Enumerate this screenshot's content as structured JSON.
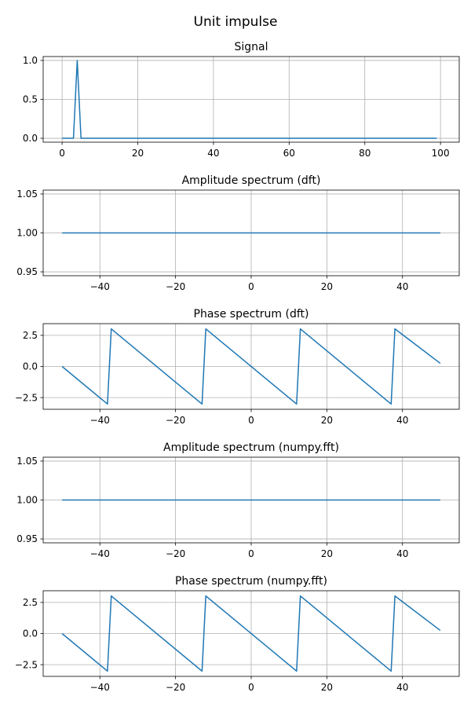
{
  "suptitle": "Unit impulse",
  "colors": {
    "series": "#1f77b4",
    "grid": "#b0b0b0"
  },
  "chart_data": [
    {
      "type": "line",
      "title": "Signal",
      "xlabel": "",
      "ylabel": "",
      "grid": true,
      "xlim": [
        -5,
        104.95
      ],
      "ylim": [
        -0.05,
        1.05
      ],
      "xticks": [
        0,
        20,
        40,
        60,
        80,
        100
      ],
      "xtick_labels": [
        "0",
        "20",
        "40",
        "60",
        "80",
        "100"
      ],
      "yticks": [
        0,
        0.5,
        1
      ],
      "ytick_labels": [
        "0.0",
        "0.5",
        "1.0"
      ],
      "series": [
        {
          "x": [
            0,
            1,
            2,
            3,
            4,
            5,
            99
          ],
          "y": [
            0,
            0,
            0,
            0,
            1,
            0,
            0
          ]
        }
      ]
    },
    {
      "type": "line",
      "title": "Amplitude spectrum (dft)",
      "xlabel": "",
      "ylabel": "",
      "grid": true,
      "xlim": [
        -55,
        55
      ],
      "ylim": [
        0.945,
        1.055
      ],
      "xticks": [
        -40,
        -20,
        0,
        20,
        40
      ],
      "xtick_labels": [
        "−40",
        "−20",
        "0",
        "20",
        "40"
      ],
      "yticks": [
        0.95,
        1.0,
        1.05
      ],
      "ytick_labels": [
        "0.95",
        "1.00",
        "1.05"
      ],
      "series": [
        {
          "x": [
            -50,
            50
          ],
          "y": [
            1,
            1
          ]
        }
      ]
    },
    {
      "type": "line",
      "title": "Phase spectrum (dft)",
      "xlabel": "",
      "ylabel": "",
      "grid": true,
      "xlim": [
        -55,
        55
      ],
      "ylim": [
        -3.44,
        3.44
      ],
      "xticks": [
        -40,
        -20,
        0,
        20,
        40
      ],
      "xtick_labels": [
        "−40",
        "−20",
        "0",
        "20",
        "40"
      ],
      "yticks": [
        -2.5,
        0,
        2.5
      ],
      "ytick_labels": [
        "−2.5",
        "0.0",
        "2.5"
      ],
      "series": [
        {
          "x": [
            -50,
            -38,
            -37,
            -13,
            -12,
            12,
            13,
            37,
            38,
            50
          ],
          "y": [
            0,
            -3.02,
            3.02,
            -3.02,
            3.02,
            -3.02,
            3.02,
            -3.02,
            3.02,
            0.25
          ]
        }
      ]
    },
    {
      "type": "line",
      "title": "Amplitude spectrum (numpy.fft)",
      "xlabel": "",
      "ylabel": "",
      "grid": true,
      "xlim": [
        -55,
        55
      ],
      "ylim": [
        0.945,
        1.055
      ],
      "xticks": [
        -40,
        -20,
        0,
        20,
        40
      ],
      "xtick_labels": [
        "−40",
        "−20",
        "0",
        "20",
        "40"
      ],
      "yticks": [
        0.95,
        1.0,
        1.05
      ],
      "ytick_labels": [
        "0.95",
        "1.00",
        "1.05"
      ],
      "series": [
        {
          "x": [
            -50,
            50
          ],
          "y": [
            1,
            1
          ]
        }
      ]
    },
    {
      "type": "line",
      "title": "Phase spectrum (numpy.fft)",
      "xlabel": "",
      "ylabel": "",
      "grid": true,
      "xlim": [
        -55,
        55
      ],
      "ylim": [
        -3.44,
        3.44
      ],
      "xticks": [
        -40,
        -20,
        0,
        20,
        40
      ],
      "xtick_labels": [
        "−40",
        "−20",
        "0",
        "20",
        "40"
      ],
      "yticks": [
        -2.5,
        0,
        2.5
      ],
      "ytick_labels": [
        "−2.5",
        "0.0",
        "2.5"
      ],
      "series": [
        {
          "x": [
            -50,
            -38,
            -37,
            -13,
            -12,
            12,
            13,
            37,
            38,
            50
          ],
          "y": [
            0,
            -3.02,
            3.02,
            -3.02,
            3.02,
            -3.02,
            3.02,
            -3.02,
            3.02,
            0.25
          ]
        }
      ]
    }
  ]
}
